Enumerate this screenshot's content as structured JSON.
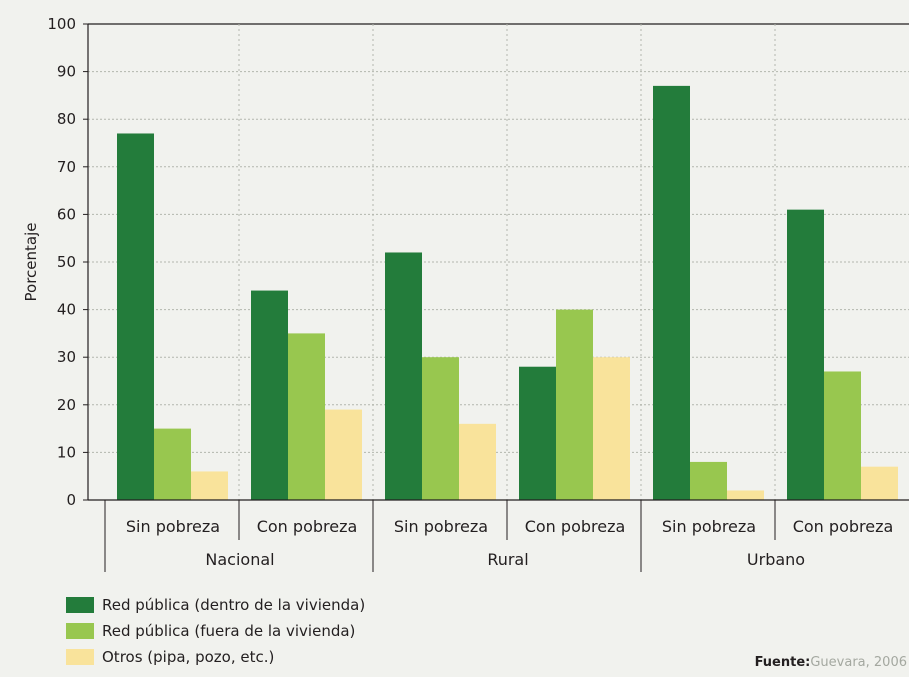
{
  "chart_data": {
    "type": "bar",
    "ylabel": "Porcentaje",
    "ylim": [
      0,
      100
    ],
    "yticks": [
      0,
      10,
      20,
      30,
      40,
      50,
      60,
      70,
      80,
      90,
      100
    ],
    "grid": true,
    "groups": [
      {
        "label": "Nacional",
        "categories": [
          "Sin pobreza",
          "Con pobreza"
        ]
      },
      {
        "label": "Rural",
        "categories": [
          "Sin pobreza",
          "Con pobreza"
        ]
      },
      {
        "label": "Urbano",
        "categories": [
          "Sin pobreza",
          "Con pobreza"
        ]
      }
    ],
    "series": [
      {
        "name": "Red pública (dentro de la vivienda)",
        "color": "#237c3b",
        "values": [
          77,
          44,
          52,
          28,
          87,
          61
        ]
      },
      {
        "name": "Red pública (fuera de la vivienda)",
        "color": "#98c74f",
        "values": [
          15,
          35,
          30,
          40,
          8,
          27
        ]
      },
      {
        "name": "Otros (pipa, pozo, etc.)",
        "color": "#f9e39b",
        "values": [
          6,
          19,
          16,
          30,
          2,
          7
        ]
      }
    ],
    "legend_position": "bottom-left"
  },
  "source": {
    "label": "Fuente:",
    "text": "Guevara, 2006"
  }
}
